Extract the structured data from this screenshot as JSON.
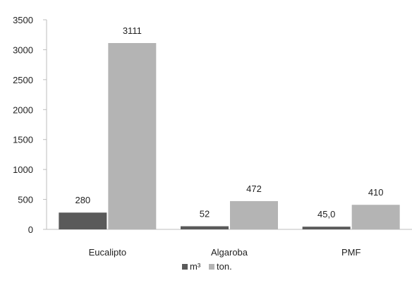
{
  "chart_data": {
    "type": "bar",
    "categories": [
      "Eucalipto",
      "Algaroba",
      "PMF"
    ],
    "series": [
      {
        "name": "m³",
        "values": [
          280,
          52,
          45.0
        ],
        "labels": [
          "280",
          "52",
          "45,0"
        ],
        "color": "#5a5a5a"
      },
      {
        "name": "ton.",
        "values": [
          3111,
          472,
          410
        ],
        "labels": [
          "3111",
          "472",
          "410"
        ],
        "color": "#b4b4b4"
      }
    ],
    "yticks": [
      "0",
      "500",
      "1000",
      "1500",
      "2000",
      "2500",
      "3000",
      "3500"
    ],
    "ylim": [
      0,
      3500
    ],
    "grid": false,
    "legend": "bottom-center",
    "title": "",
    "xlabel": "",
    "ylabel": ""
  }
}
